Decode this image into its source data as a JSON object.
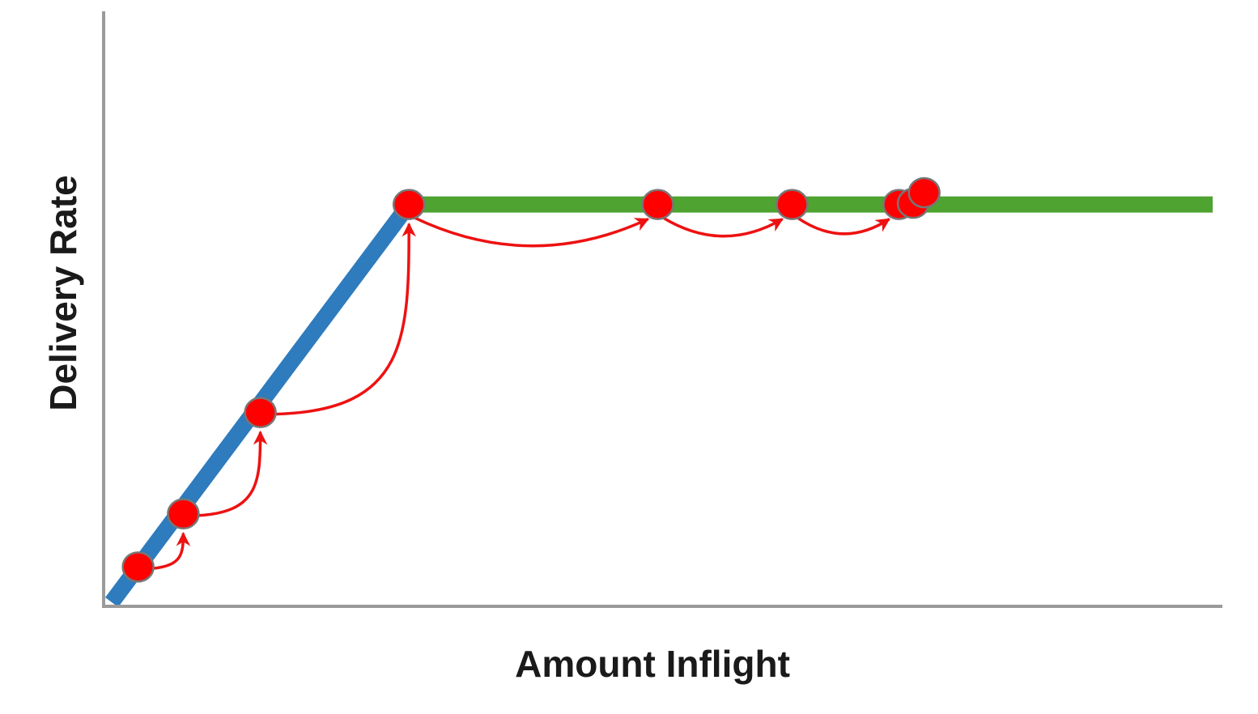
{
  "chart_data": {
    "type": "line",
    "title": "",
    "xlabel": "Amount Inflight",
    "ylabel": "Delivery Rate",
    "grid": false,
    "legend": "none",
    "xlim": [
      0,
      10
    ],
    "ylim": [
      0,
      10
    ],
    "series": [
      {
        "x": [
          0,
          2.7
        ],
        "y": [
          0,
          6.75
        ],
        "color": "#2e7bbd"
      },
      {
        "x": [
          2.7,
          10
        ],
        "y": [
          6.75,
          6.75
        ],
        "color": "#4ea331"
      }
    ],
    "points": {
      "x": [
        0.24,
        0.65,
        1.35,
        2.7,
        4.96,
        6.18,
        7.15,
        7.28,
        7.38
      ],
      "y": [
        0.6,
        1.5,
        3.22,
        6.75,
        6.75,
        6.75,
        6.75,
        6.77,
        6.95
      ],
      "color": "#ff0000"
    },
    "arrows": [
      {
        "from": 0,
        "to": 1
      },
      {
        "from": 1,
        "to": 2
      },
      {
        "from": 2,
        "to": 3
      },
      {
        "from": 3,
        "to": 4
      },
      {
        "from": 4,
        "to": 5
      },
      {
        "from": 5,
        "to": 6
      }
    ],
    "colors": {
      "axis": "#9a9a9a",
      "arrow": "#ee1111",
      "point_stroke": "#777777"
    }
  }
}
